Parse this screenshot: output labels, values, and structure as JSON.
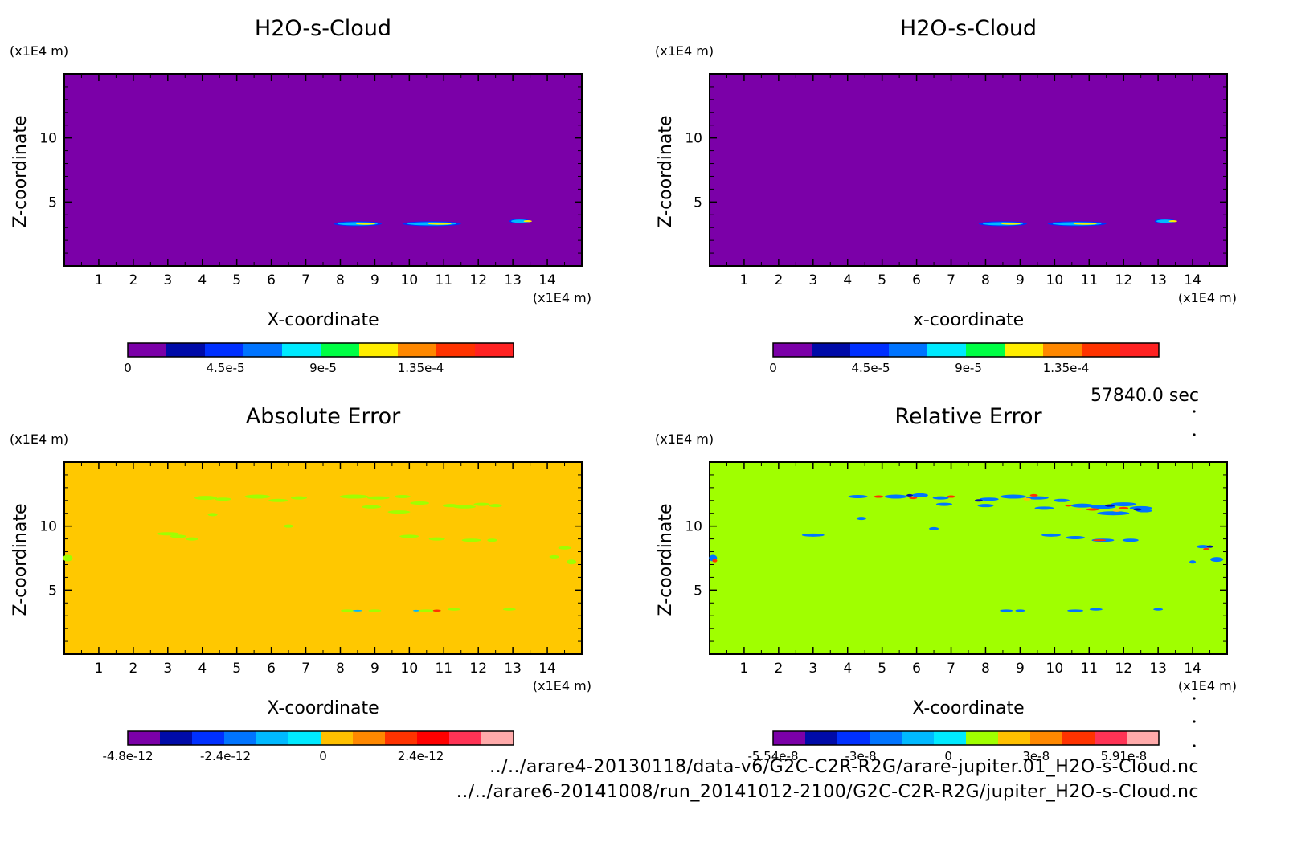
{
  "time_label": "57840.0 sec",
  "file_paths": [
    "../../arare4-20130118/data-v6/G2C-C2R-R2G/arare-jupiter.01_H2O-s-Cloud.nc",
    "../../arare6-20141008/run_20141012-2100/G2C-C2R-R2G/jupiter_H2O-s-Cloud.nc"
  ],
  "colors": {
    "rainbow12": [
      "#7b00a8",
      "#000ba8",
      "#0030ff",
      "#0074ff",
      "#00b9ff",
      "#00eaff",
      "#00ff66",
      "#ffee00",
      "#ffc000",
      "#ff8800",
      "#ff3300",
      "#ff0000"
    ],
    "abs_bg": "#ffc800",
    "abs_patch": "#a0ff00",
    "rel_bg": "#a0ff00",
    "cloud_bg": "#7b00a8"
  },
  "chart_data": [
    {
      "type": "heatmap",
      "title": "H2O-s-Cloud",
      "xlabel": "X-coordinate",
      "ylabel": "Z-coordinate",
      "x_unit": "(x1E4 m)",
      "y_unit": "(x1E4 m)",
      "xlim": [
        0,
        15
      ],
      "ylim": [
        0,
        15
      ],
      "xticks": [
        1,
        2,
        3,
        4,
        5,
        6,
        7,
        8,
        9,
        10,
        11,
        12,
        13,
        14
      ],
      "yticks": [
        5,
        10
      ],
      "colorbar": {
        "ticks": [
          "0",
          "4.5e-5",
          "9e-5",
          "1.35e-4"
        ],
        "min": 0,
        "max": 0.00015
      },
      "features": [
        {
          "x_range": [
            7.8,
            9.2
          ],
          "z": 3.3,
          "kind": "cloud"
        },
        {
          "x_range": [
            9.8,
            11.5
          ],
          "z": 3.3,
          "kind": "cloud"
        },
        {
          "x_range": [
            12.9,
            13.5
          ],
          "z": 3.5,
          "kind": "cloud"
        }
      ]
    },
    {
      "type": "heatmap",
      "title": "H2O-s-Cloud",
      "xlabel": "x-coordinate",
      "ylabel": "Z-coordinate",
      "x_unit": "(x1E4 m)",
      "y_unit": "(x1E4 m)",
      "xlim": [
        0,
        15
      ],
      "ylim": [
        0,
        15
      ],
      "xticks": [
        1,
        2,
        3,
        4,
        5,
        6,
        7,
        8,
        9,
        10,
        11,
        12,
        13,
        14
      ],
      "yticks": [
        5,
        10
      ],
      "colorbar": {
        "ticks": [
          "0",
          "4.5e-5",
          "9e-5",
          "1.35e-4"
        ],
        "min": 0,
        "max": 0.00015
      },
      "features": [
        {
          "x_range": [
            7.8,
            9.2
          ],
          "z": 3.3,
          "kind": "cloud"
        },
        {
          "x_range": [
            9.8,
            11.5
          ],
          "z": 3.3,
          "kind": "cloud"
        },
        {
          "x_range": [
            12.9,
            13.5
          ],
          "z": 3.5,
          "kind": "cloud"
        }
      ]
    },
    {
      "type": "heatmap",
      "title": "Absolute Error",
      "xlabel": "X-coordinate",
      "ylabel": "Z-coordinate",
      "x_unit": "(x1E4 m)",
      "y_unit": "(x1E4 m)",
      "xlim": [
        0,
        15
      ],
      "ylim": [
        0,
        15
      ],
      "xticks": [
        1,
        2,
        3,
        4,
        5,
        6,
        7,
        8,
        9,
        10,
        11,
        12,
        13,
        14
      ],
      "yticks": [
        5,
        10
      ],
      "colorbar": {
        "ticks": [
          "-4.8e-12",
          "-2.4e-12",
          "0",
          "2.4e-12"
        ],
        "min": -4.8e-12,
        "max": 5e-12
      }
    },
    {
      "type": "heatmap",
      "title": "Relative Error",
      "xlabel": "X-coordinate",
      "ylabel": "Z-coordinate",
      "x_unit": "(x1E4 m)",
      "y_unit": "(x1E4 m)",
      "xlim": [
        0,
        15
      ],
      "ylim": [
        0,
        15
      ],
      "xticks": [
        1,
        2,
        3,
        4,
        5,
        6,
        7,
        8,
        9,
        10,
        11,
        12,
        13,
        14
      ],
      "yticks": [
        5,
        10
      ],
      "colorbar": {
        "ticks": [
          "-5.54e-8",
          "-3e-8",
          "0",
          "3e-8",
          "5.91e-8"
        ],
        "min": -5.54e-08,
        "max": 5.91e-08
      }
    }
  ]
}
